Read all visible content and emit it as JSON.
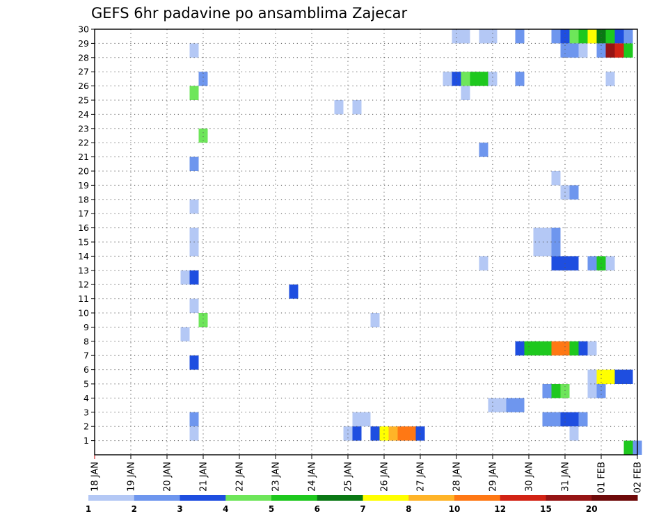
{
  "chart_data": {
    "type": "heatmap",
    "title": "GEFS 6hr padavine po ansamblima Zajecar",
    "xlabel": "",
    "ylabel": "",
    "x_ticks": [
      "18 JAN",
      "19 JAN",
      "20 JAN",
      "21 JAN",
      "22 JAN",
      "23 JAN",
      "24 JAN",
      "25 JAN",
      "26 JAN",
      "27 JAN",
      "28 JAN",
      "29 JAN",
      "30 JAN",
      "31 JAN",
      "01 FEB",
      "02 FEB"
    ],
    "x_range": [
      "18 JAN 00Z",
      "02 FEB 00Z"
    ],
    "x_step": "6hr",
    "y_ticks": [
      1,
      2,
      3,
      4,
      5,
      6,
      7,
      8,
      9,
      10,
      11,
      12,
      13,
      14,
      15,
      16,
      17,
      18,
      19,
      20,
      21,
      22,
      23,
      24,
      25,
      26,
      27,
      28,
      29,
      30
    ],
    "y_range": [
      0,
      30
    ],
    "grid": true,
    "colorbar": {
      "colors": [
        "#b4c8f5",
        "#6e96ee",
        "#1e4ee0",
        "#6ee65a",
        "#1ec81e",
        "#0a7814",
        "#ffff00",
        "#ffb428",
        "#ff7814",
        "#d22314",
        "#961414",
        "#6e0a0a"
      ],
      "tick_labels": [
        "1",
        "2",
        "3",
        "4",
        "5",
        "6",
        "7",
        "8",
        "10",
        "12",
        "15",
        "20"
      ]
    },
    "cells": [
      {
        "m": 30,
        "t": "28 JAN 00Z",
        "v": 1
      },
      {
        "m": 30,
        "t": "28 JAN 06Z",
        "v": 1
      },
      {
        "m": 30,
        "t": "28 JAN 18Z",
        "v": 1
      },
      {
        "m": 30,
        "t": "29 JAN 00Z",
        "v": 1
      },
      {
        "m": 30,
        "t": "29 JAN 18Z",
        "v": 2
      },
      {
        "m": 30,
        "t": "30 JAN 18Z",
        "v": 2
      },
      {
        "m": 30,
        "t": "31 JAN 00Z",
        "v": 3
      },
      {
        "m": 30,
        "t": "31 JAN 06Z",
        "v": 4
      },
      {
        "m": 30,
        "t": "31 JAN 12Z",
        "v": 5
      },
      {
        "m": 30,
        "t": "31 JAN 18Z",
        "v": 7
      },
      {
        "m": 30,
        "t": "01 FEB 00Z",
        "v": 6
      },
      {
        "m": 30,
        "t": "01 FEB 06Z",
        "v": 5
      },
      {
        "m": 30,
        "t": "01 FEB 12Z",
        "v": 3
      },
      {
        "m": 30,
        "t": "01 FEB 18Z",
        "v": 2
      },
      {
        "m": 29,
        "t": "20 JAN 18Z",
        "v": 1
      },
      {
        "m": 29,
        "t": "31 JAN 00Z",
        "v": 2
      },
      {
        "m": 29,
        "t": "31 JAN 06Z",
        "v": 2
      },
      {
        "m": 29,
        "t": "31 JAN 12Z",
        "v": 1
      },
      {
        "m": 29,
        "t": "01 FEB 00Z",
        "v": 2
      },
      {
        "m": 29,
        "t": "01 FEB 06Z",
        "v": 15
      },
      {
        "m": 29,
        "t": "01 FEB 12Z",
        "v": 12
      },
      {
        "m": 29,
        "t": "01 FEB 18Z",
        "v": 5
      },
      {
        "m": 27,
        "t": "21 JAN 00Z",
        "v": 2
      },
      {
        "m": 27,
        "t": "27 JAN 18Z",
        "v": 1
      },
      {
        "m": 27,
        "t": "28 JAN 00Z",
        "v": 3
      },
      {
        "m": 27,
        "t": "28 JAN 06Z",
        "v": 4
      },
      {
        "m": 27,
        "t": "28 JAN 12Z",
        "v": 5
      },
      {
        "m": 27,
        "t": "28 JAN 18Z",
        "v": 5
      },
      {
        "m": 27,
        "t": "29 JAN 00Z",
        "v": 1
      },
      {
        "m": 27,
        "t": "29 JAN 18Z",
        "v": 2
      },
      {
        "m": 27,
        "t": "01 FEB 06Z",
        "v": 1
      },
      {
        "m": 26,
        "t": "20 JAN 18Z",
        "v": 4
      },
      {
        "m": 26,
        "t": "28 JAN 06Z",
        "v": 1
      },
      {
        "m": 25,
        "t": "24 JAN 18Z",
        "v": 1
      },
      {
        "m": 25,
        "t": "25 JAN 06Z",
        "v": 1
      },
      {
        "m": 23,
        "t": "21 JAN 00Z",
        "v": 4
      },
      {
        "m": 22,
        "t": "28 JAN 18Z",
        "v": 2
      },
      {
        "m": 21,
        "t": "20 JAN 18Z",
        "v": 2
      },
      {
        "m": 20,
        "t": "30 JAN 18Z",
        "v": 1
      },
      {
        "m": 19,
        "t": "31 JAN 00Z",
        "v": 1
      },
      {
        "m": 19,
        "t": "31 JAN 06Z",
        "v": 2
      },
      {
        "m": 18,
        "t": "20 JAN 18Z",
        "v": 1
      },
      {
        "m": 16,
        "t": "20 JAN 18Z",
        "v": 1
      },
      {
        "m": 16,
        "t": "30 JAN 06Z",
        "v": 1
      },
      {
        "m": 16,
        "t": "30 JAN 12Z",
        "v": 1
      },
      {
        "m": 16,
        "t": "30 JAN 18Z",
        "v": 2
      },
      {
        "m": 15,
        "t": "20 JAN 18Z",
        "v": 1
      },
      {
        "m": 15,
        "t": "30 JAN 06Z",
        "v": 1
      },
      {
        "m": 15,
        "t": "30 JAN 12Z",
        "v": 1
      },
      {
        "m": 15,
        "t": "30 JAN 18Z",
        "v": 2
      },
      {
        "m": 14,
        "t": "28 JAN 18Z",
        "v": 1
      },
      {
        "m": 14,
        "t": "30 JAN 18Z",
        "v": 3
      },
      {
        "m": 14,
        "t": "31 JAN 00Z",
        "v": 3
      },
      {
        "m": 14,
        "t": "31 JAN 06Z",
        "v": 3
      },
      {
        "m": 14,
        "t": "31 JAN 18Z",
        "v": 2
      },
      {
        "m": 14,
        "t": "01 FEB 00Z",
        "v": 5
      },
      {
        "m": 14,
        "t": "01 FEB 06Z",
        "v": 1
      },
      {
        "m": 13,
        "t": "20 JAN 12Z",
        "v": 1
      },
      {
        "m": 13,
        "t": "20 JAN 18Z",
        "v": 3
      },
      {
        "m": 12,
        "t": "23 JAN 12Z",
        "v": 3
      },
      {
        "m": 11,
        "t": "20 JAN 18Z",
        "v": 1
      },
      {
        "m": 10,
        "t": "21 JAN 00Z",
        "v": 4
      },
      {
        "m": 10,
        "t": "25 JAN 18Z",
        "v": 1
      },
      {
        "m": 9,
        "t": "20 JAN 12Z",
        "v": 1
      },
      {
        "m": 8,
        "t": "29 JAN 18Z",
        "v": 3
      },
      {
        "m": 8,
        "t": "30 JAN 00Z",
        "v": 5
      },
      {
        "m": 8,
        "t": "30 JAN 06Z",
        "v": 5
      },
      {
        "m": 8,
        "t": "30 JAN 12Z",
        "v": 5
      },
      {
        "m": 8,
        "t": "30 JAN 18Z",
        "v": 10
      },
      {
        "m": 8,
        "t": "31 JAN 00Z",
        "v": 10
      },
      {
        "m": 8,
        "t": "31 JAN 06Z",
        "v": 5
      },
      {
        "m": 8,
        "t": "31 JAN 12Z",
        "v": 3
      },
      {
        "m": 8,
        "t": "31 JAN 18Z",
        "v": 1
      },
      {
        "m": 7,
        "t": "20 JAN 18Z",
        "v": 3
      },
      {
        "m": 6,
        "t": "31 JAN 18Z",
        "v": 1
      },
      {
        "m": 6,
        "t": "01 FEB 00Z",
        "v": 7
      },
      {
        "m": 6,
        "t": "01 FEB 06Z",
        "v": 7
      },
      {
        "m": 6,
        "t": "01 FEB 12Z",
        "v": 3
      },
      {
        "m": 6,
        "t": "01 FEB 18Z",
        "v": 3
      },
      {
        "m": 5,
        "t": "30 JAN 12Z",
        "v": 2
      },
      {
        "m": 5,
        "t": "30 JAN 18Z",
        "v": 5
      },
      {
        "m": 5,
        "t": "31 JAN 00Z",
        "v": 4
      },
      {
        "m": 5,
        "t": "31 JAN 18Z",
        "v": 1
      },
      {
        "m": 5,
        "t": "01 FEB 00Z",
        "v": 2
      },
      {
        "m": 4,
        "t": "29 JAN 00Z",
        "v": 1
      },
      {
        "m": 4,
        "t": "29 JAN 06Z",
        "v": 1
      },
      {
        "m": 4,
        "t": "29 JAN 12Z",
        "v": 2
      },
      {
        "m": 4,
        "t": "29 JAN 18Z",
        "v": 2
      },
      {
        "m": 3,
        "t": "20 JAN 18Z",
        "v": 2
      },
      {
        "m": 3,
        "t": "25 JAN 06Z",
        "v": 1
      },
      {
        "m": 3,
        "t": "25 JAN 12Z",
        "v": 1
      },
      {
        "m": 3,
        "t": "30 JAN 12Z",
        "v": 2
      },
      {
        "m": 3,
        "t": "30 JAN 18Z",
        "v": 2
      },
      {
        "m": 3,
        "t": "31 JAN 00Z",
        "v": 3
      },
      {
        "m": 3,
        "t": "31 JAN 06Z",
        "v": 3
      },
      {
        "m": 3,
        "t": "31 JAN 12Z",
        "v": 2
      },
      {
        "m": 2,
        "t": "20 JAN 18Z",
        "v": 1
      },
      {
        "m": 2,
        "t": "25 JAN 00Z",
        "v": 1
      },
      {
        "m": 2,
        "t": "25 JAN 06Z",
        "v": 3
      },
      {
        "m": 2,
        "t": "25 JAN 18Z",
        "v": 3
      },
      {
        "m": 2,
        "t": "26 JAN 00Z",
        "v": 7
      },
      {
        "m": 2,
        "t": "26 JAN 06Z",
        "v": 8
      },
      {
        "m": 2,
        "t": "26 JAN 12Z",
        "v": 10
      },
      {
        "m": 2,
        "t": "26 JAN 18Z",
        "v": 10
      },
      {
        "m": 2,
        "t": "27 JAN 00Z",
        "v": 3
      },
      {
        "m": 2,
        "t": "31 JAN 06Z",
        "v": 1
      },
      {
        "m": 1,
        "t": "01 FEB 18Z",
        "v": 5
      },
      {
        "m": 1,
        "t": "02 FEB 00Z",
        "v": 2
      }
    ]
  }
}
